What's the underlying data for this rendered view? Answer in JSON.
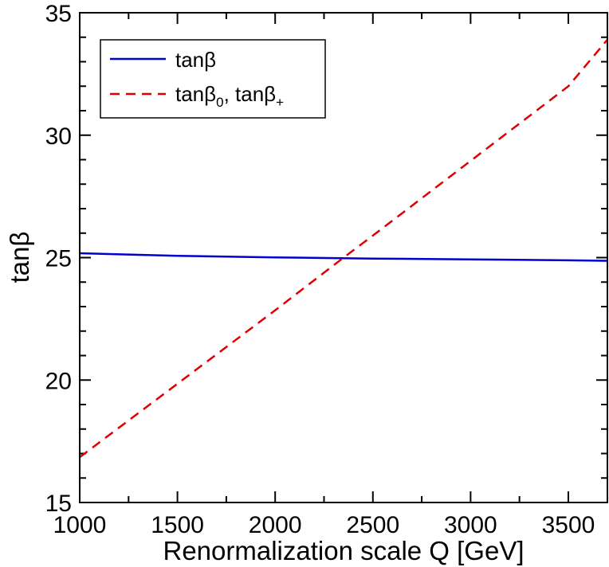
{
  "chart_data": {
    "type": "line",
    "xlabel": "Renormalization scale Q [GeV]",
    "ylabel": "tanβ",
    "xlim": [
      1000,
      3700
    ],
    "ylim": [
      15,
      35
    ],
    "x_major_ticks": [
      1000,
      1500,
      2000,
      2500,
      3000,
      3500
    ],
    "x_tick_labels": [
      "1000",
      "1500",
      "2000",
      "2500",
      "3000",
      "3500"
    ],
    "y_major_ticks": [
      15,
      20,
      25,
      30,
      35
    ],
    "y_tick_labels": [
      "15",
      "20",
      "25",
      "30",
      "35"
    ],
    "x_minor_step": 250,
    "y_minor_step": 1,
    "grid": false,
    "legend_position": "top-left",
    "series": [
      {
        "name": "tanβ",
        "color": "#0000cc",
        "style": "solid",
        "x": [
          1000,
          1500,
          2000,
          2500,
          3000,
          3500,
          3700
        ],
        "y": [
          25.18,
          25.07,
          25.01,
          24.96,
          24.93,
          24.89,
          24.87
        ]
      },
      {
        "name": "tanβ0, tanβ+",
        "color": "#e00000",
        "style": "dashed",
        "x": [
          1000,
          1500,
          2000,
          2350,
          2500,
          3000,
          3500,
          3700
        ],
        "y": [
          16.85,
          19.85,
          22.85,
          25.0,
          25.9,
          28.95,
          32.0,
          33.9
        ]
      }
    ],
    "legend": {
      "entries": [
        {
          "main": "tanβ",
          "parts": []
        },
        {
          "main": "tanβ",
          "parts": [
            {
              "sub": "0"
            },
            {
              "text": ", tanβ"
            },
            {
              "sub": "+"
            }
          ]
        }
      ]
    }
  }
}
